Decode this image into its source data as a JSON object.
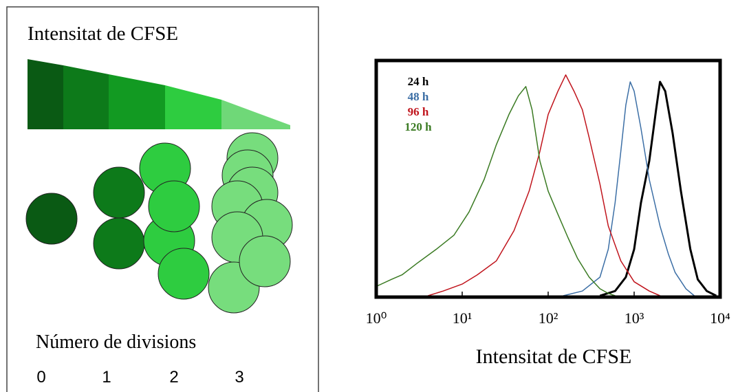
{
  "diagram": {
    "title": "Intensitat de CFSE",
    "caption": "Número de divisions",
    "division_labels": [
      "0",
      "1",
      "2",
      "3"
    ]
  },
  "chart_data": {
    "type": "line",
    "xscale": "log",
    "xlabel": "Intensitat de CFSE",
    "xlim": [
      1,
      10000
    ],
    "ylim": [
      0,
      100
    ],
    "xticks": [
      {
        "value": 1,
        "label": "10⁰"
      },
      {
        "value": 10,
        "label": "10¹"
      },
      {
        "value": 100,
        "label": "10²"
      },
      {
        "value": 1000,
        "label": "10³"
      },
      {
        "value": 10000,
        "label": "10⁴"
      }
    ],
    "series": [
      {
        "name": "24 h",
        "color": "#000000",
        "x": [
          400,
          600,
          800,
          1000,
          1200,
          1500,
          1800,
          2000,
          2300,
          2800,
          3500,
          4500,
          5500,
          7000,
          9000
        ],
        "values": [
          0,
          2,
          8,
          20,
          40,
          58,
          80,
          92,
          88,
          70,
          45,
          20,
          7,
          2,
          0
        ]
      },
      {
        "name": "48 h",
        "color": "#3b6ea5",
        "x": [
          150,
          250,
          400,
          500,
          600,
          700,
          800,
          900,
          1000,
          1200,
          1500,
          2000,
          2500,
          3000,
          4000,
          5000
        ],
        "values": [
          0,
          2,
          8,
          20,
          40,
          62,
          82,
          92,
          88,
          72,
          50,
          30,
          18,
          10,
          3,
          0
        ]
      },
      {
        "name": "96 h",
        "color": "#c0141c",
        "x": [
          4,
          6,
          10,
          15,
          25,
          40,
          60,
          80,
          100,
          130,
          160,
          200,
          250,
          300,
          400,
          500,
          700,
          1000,
          1500,
          2000
        ],
        "values": [
          0,
          2,
          5,
          9,
          15,
          28,
          45,
          62,
          78,
          88,
          95,
          88,
          80,
          68,
          48,
          30,
          15,
          6,
          2,
          0
        ]
      },
      {
        "name": "120 h",
        "color": "#3a7a22",
        "x": [
          1,
          1.5,
          2,
          3,
          5,
          8,
          12,
          18,
          25,
          35,
          45,
          55,
          65,
          80,
          100,
          130,
          170,
          220,
          300,
          400,
          500,
          600
        ],
        "values": [
          4,
          7,
          9,
          14,
          20,
          26,
          36,
          50,
          65,
          78,
          86,
          90,
          80,
          58,
          45,
          35,
          25,
          16,
          8,
          3,
          1,
          0
        ]
      }
    ]
  }
}
